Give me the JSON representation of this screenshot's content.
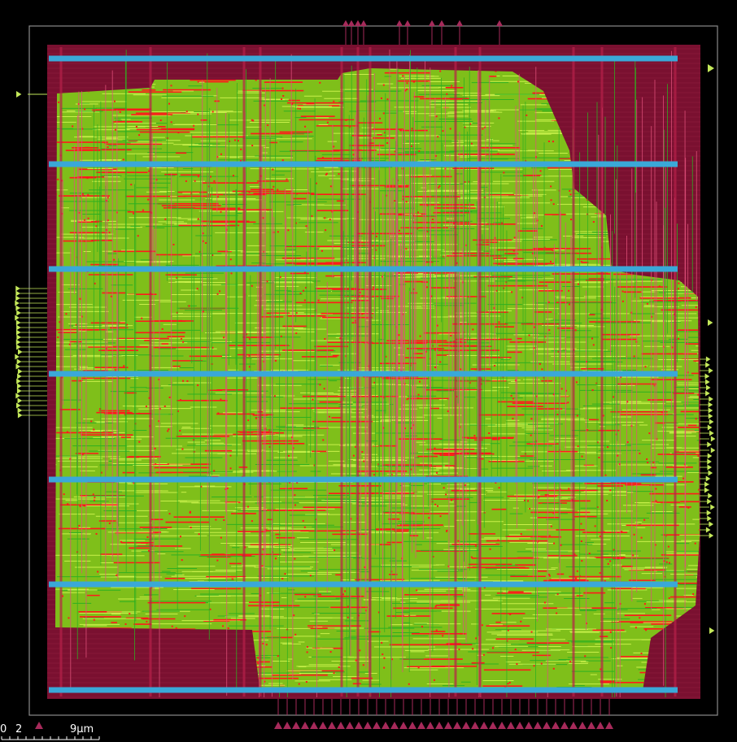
{
  "colors": {
    "background": "#000000",
    "die_outline": "#8a8a8a",
    "core_fill": "#7a1030",
    "core_grid": "#a8304f",
    "std_cell_fill": "#7fbf1a",
    "signal_route_light": "#c8f04a",
    "signal_route_green": "#2fb020",
    "via_red": "#ff1a1a",
    "vertical_route_pink": "#e0507a",
    "power_rail": "#3aa8d8",
    "pin_yellow_green": "#c4e85a",
    "pin_magenta": "#a62a5a"
  },
  "legend": {
    "icon": "layout-viewer-scale-bar"
  },
  "scale_bar": {
    "label_zero": "0",
    "label_two": "2",
    "label_unit": "9µm"
  }
}
